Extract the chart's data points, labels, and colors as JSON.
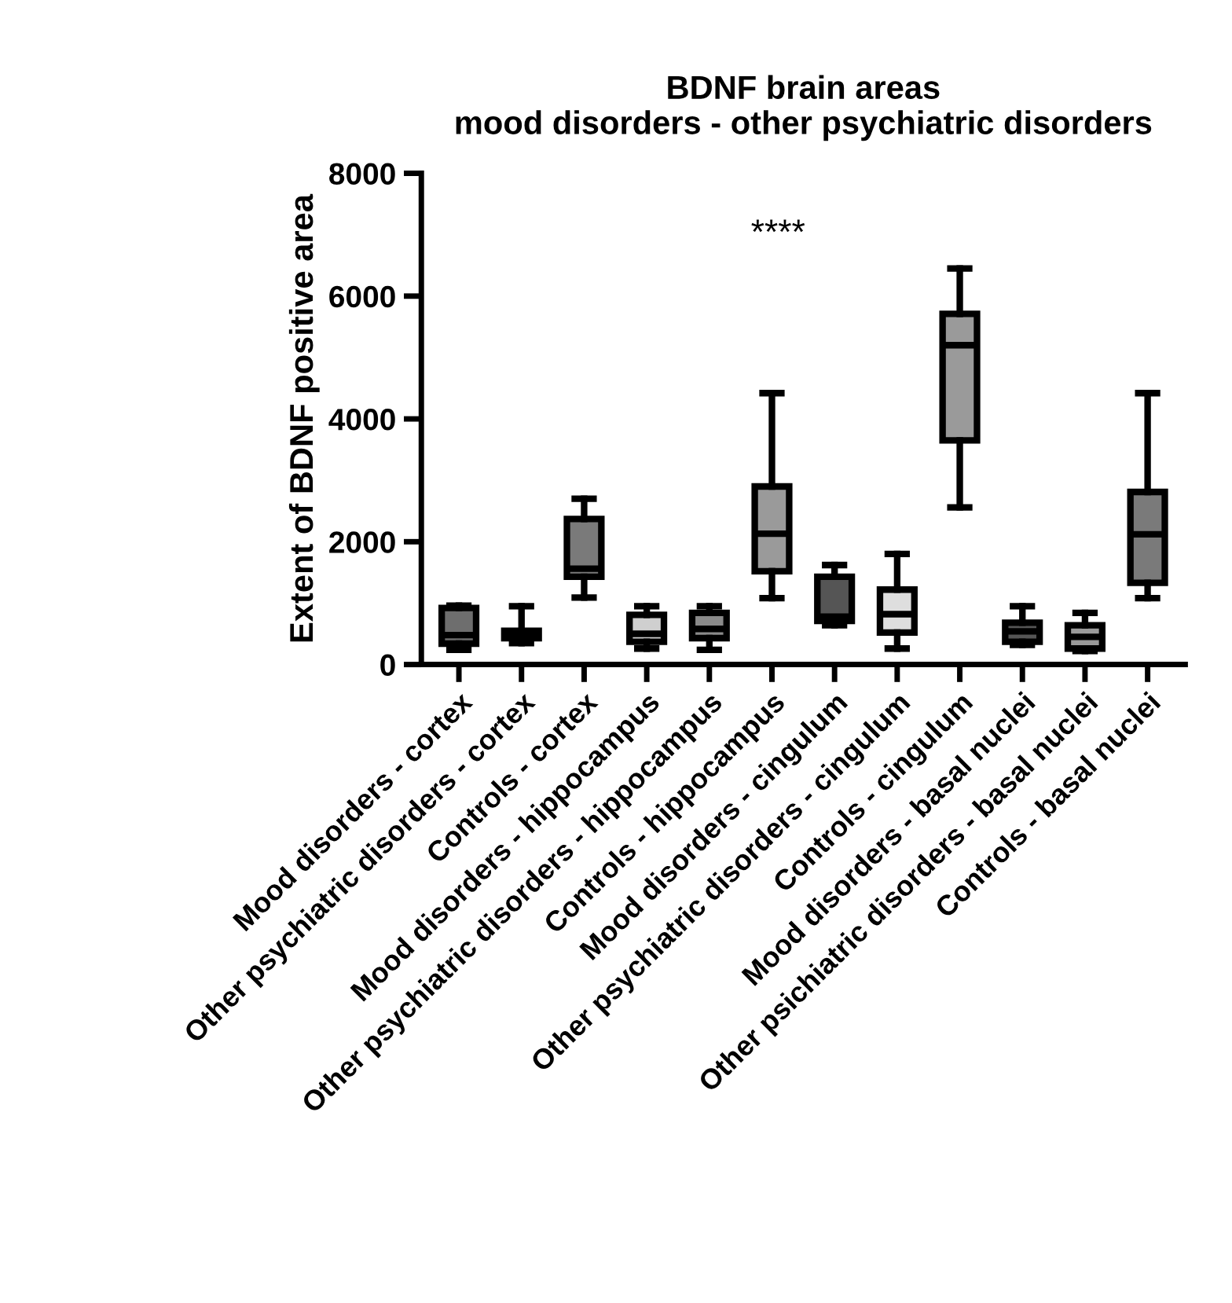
{
  "chart_data": {
    "type": "box",
    "title": "BDNF brain areas\nmood disorders - other psychiatric disorders",
    "ylabel": "Extent of BDNF positive area",
    "categories": [
      "Mood disorders - cortex",
      "Other psychiatric disorders - cortex",
      "Controls - cortex",
      "Mood disorders - hippocampus",
      "Other psychiatric disorders - hippocampus",
      "Controls - hippocampus",
      "Mood disorders - cingulum",
      "Other psychiatric disorders - cingulum",
      "Controls - cingulum",
      "Mood disorders - basal nuclei",
      "Other psichiatric disorders - basal nuclei",
      "Controls - basal nuclei"
    ],
    "boxes": [
      {
        "low": 240,
        "q1": 340,
        "median": 480,
        "q3": 920,
        "high": 960
      },
      {
        "low": 350,
        "q1": 430,
        "median": 500,
        "q3": 550,
        "high": 950
      },
      {
        "low": 1090,
        "q1": 1430,
        "median": 1560,
        "q3": 2370,
        "high": 2700
      },
      {
        "low": 260,
        "q1": 370,
        "median": 500,
        "q3": 810,
        "high": 950
      },
      {
        "low": 240,
        "q1": 430,
        "median": 580,
        "q3": 840,
        "high": 950
      },
      {
        "low": 1080,
        "q1": 1520,
        "median": 2130,
        "q3": 2900,
        "high": 4420
      },
      {
        "low": 640,
        "q1": 710,
        "median": 780,
        "q3": 1430,
        "high": 1620
      },
      {
        "low": 260,
        "q1": 520,
        "median": 820,
        "q3": 1220,
        "high": 1800
      },
      {
        "low": 2560,
        "q1": 3650,
        "median": 5200,
        "q3": 5710,
        "high": 6450
      },
      {
        "low": 320,
        "q1": 370,
        "median": 540,
        "q3": 680,
        "high": 950
      },
      {
        "low": 220,
        "q1": 260,
        "median": 450,
        "q3": 640,
        "high": 840
      },
      {
        "low": 1080,
        "q1": 1330,
        "median": 2120,
        "q3": 2810,
        "high": 4420
      }
    ],
    "colors": [
      "#6e6e6e",
      "#3a3a3a",
      "#7a7a7a",
      "#cfcfcf",
      "#8a8a8a",
      "#9a9a9a",
      "#555555",
      "#dedede",
      "#9a9a9a",
      "#555555",
      "#9a9a9a",
      "#7a7a7a"
    ],
    "ylim": [
      0,
      8000
    ],
    "yticks": [
      0,
      2000,
      4000,
      6000,
      8000
    ],
    "grid": false,
    "annotations": [
      "****"
    ]
  }
}
